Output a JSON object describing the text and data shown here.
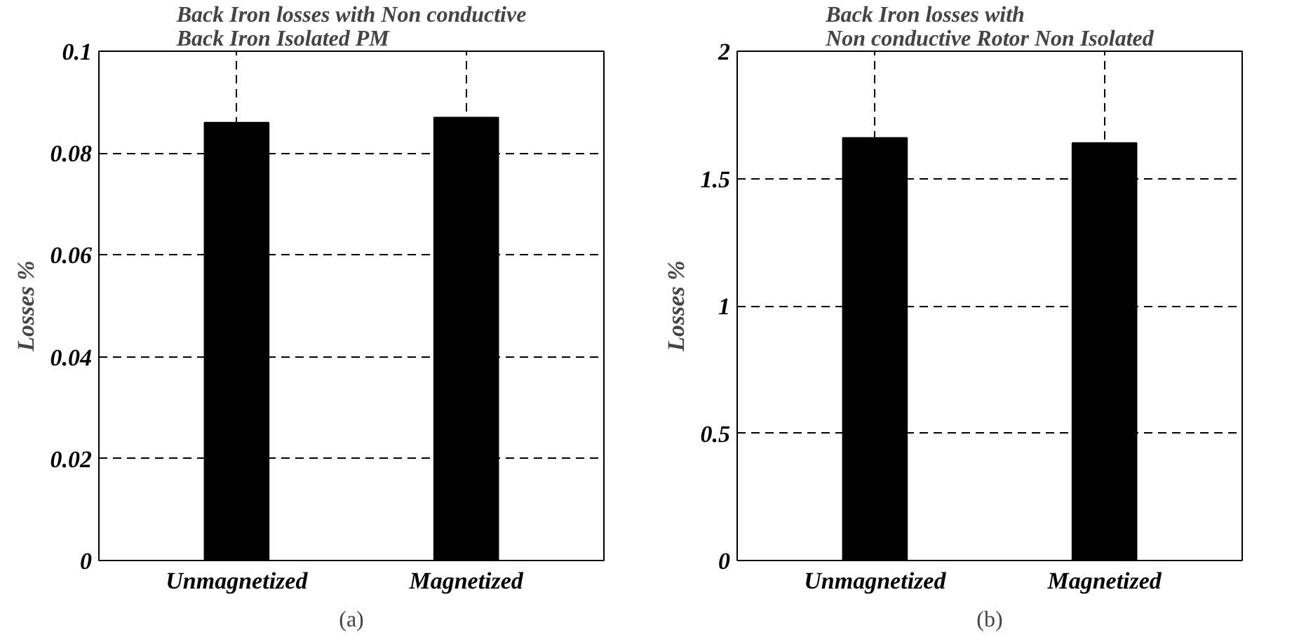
{
  "chart_data": [
    {
      "type": "bar",
      "title": "Back Iron losses with Non conductive\nBack Iron  Isolated PM",
      "ylabel": "Losses %",
      "categories": [
        "Unmagnetized",
        "Magnetized"
      ],
      "values": [
        0.086,
        0.087
      ],
      "color": "#000000",
      "ylim": [
        0,
        0.1
      ],
      "yticks": [
        0,
        0.02,
        0.04,
        0.06,
        0.08,
        0.1
      ],
      "grid": true,
      "annotations": [
        "(a)"
      ]
    },
    {
      "type": "bar",
      "title": "Back Iron losses with\nNon conductive Rotor Non Isolated",
      "ylabel": "Losses %",
      "categories": [
        "Unmagnetized",
        "Magnetized"
      ],
      "values": [
        1.66,
        1.64
      ],
      "color": "#000000",
      "ylim": [
        0,
        2
      ],
      "yticks": [
        0,
        0.5,
        1,
        1.5,
        2
      ],
      "grid": true,
      "annotations": [
        "(b)"
      ]
    }
  ]
}
